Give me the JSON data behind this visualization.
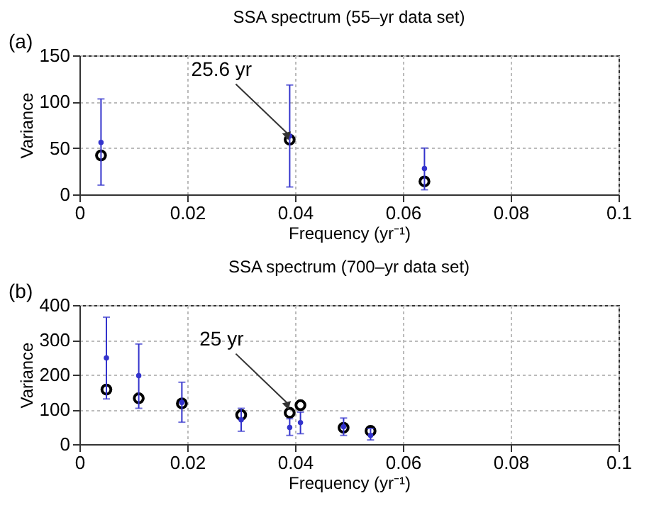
{
  "chart_data": [
    {
      "type": "scatter",
      "title": "SSA spectrum (55–yr data set)",
      "xlabel": "Frequency (yr⁻¹)",
      "ylabel": "Variance",
      "xlim": [
        0,
        0.1
      ],
      "xticks": [
        0,
        0.02,
        0.04,
        0.06,
        0.08,
        0.1
      ],
      "ylim": [
        0,
        150
      ],
      "yticks": [
        0,
        50,
        100,
        150
      ],
      "grid": true,
      "marker": "circle",
      "annotations": [
        "(a)",
        {
          "text": "25.6 yr",
          "x": 0.039,
          "y": 59
        }
      ],
      "series": [
        {
          "color": "#3333cc",
          "x": [
            0.004,
            0.039,
            0.064
          ],
          "values": [
            56,
            63,
            28
          ],
          "errors": [
            [
              10,
              103
            ],
            [
              8,
              118
            ],
            [
              5,
              50
            ]
          ]
        },
        {
          "color": "#000000",
          "x": [
            0.004,
            0.039,
            0.064
          ],
          "values": [
            42,
            59,
            14
          ]
        }
      ]
    },
    {
      "type": "scatter",
      "title": "SSA spectrum (700–yr data set)",
      "xlabel": "Frequency (yr⁻¹)",
      "ylabel": "Variance",
      "xlim": [
        0,
        0.1
      ],
      "xticks": [
        0,
        0.02,
        0.04,
        0.06,
        0.08,
        0.1
      ],
      "ylim": [
        0,
        400
      ],
      "yticks": [
        0,
        100,
        200,
        300,
        400
      ],
      "grid": true,
      "marker": "circle",
      "annotations": [
        "(b)",
        {
          "text": "25 yr",
          "x": 0.039,
          "y": 100
        }
      ],
      "series": [
        {
          "color": "#3333cc",
          "x": [
            0.005,
            0.011,
            0.019,
            0.03,
            0.039,
            0.041,
            0.049,
            0.054
          ],
          "values": [
            248,
            197,
            120,
            70,
            48,
            62,
            50,
            25
          ],
          "errors": [
            [
              130,
              365
            ],
            [
              103,
              288
            ],
            [
              63,
              178
            ],
            [
              37,
              103
            ],
            [
              25,
              73
            ],
            [
              30,
              92
            ],
            [
              25,
              75
            ],
            [
              12,
              45
            ]
          ]
        },
        {
          "color": "#000000",
          "x": [
            0.005,
            0.011,
            0.019,
            0.03,
            0.039,
            0.041,
            0.049,
            0.054
          ],
          "values": [
            157,
            132,
            117,
            84,
            90,
            112,
            47,
            38
          ]
        }
      ]
    }
  ]
}
